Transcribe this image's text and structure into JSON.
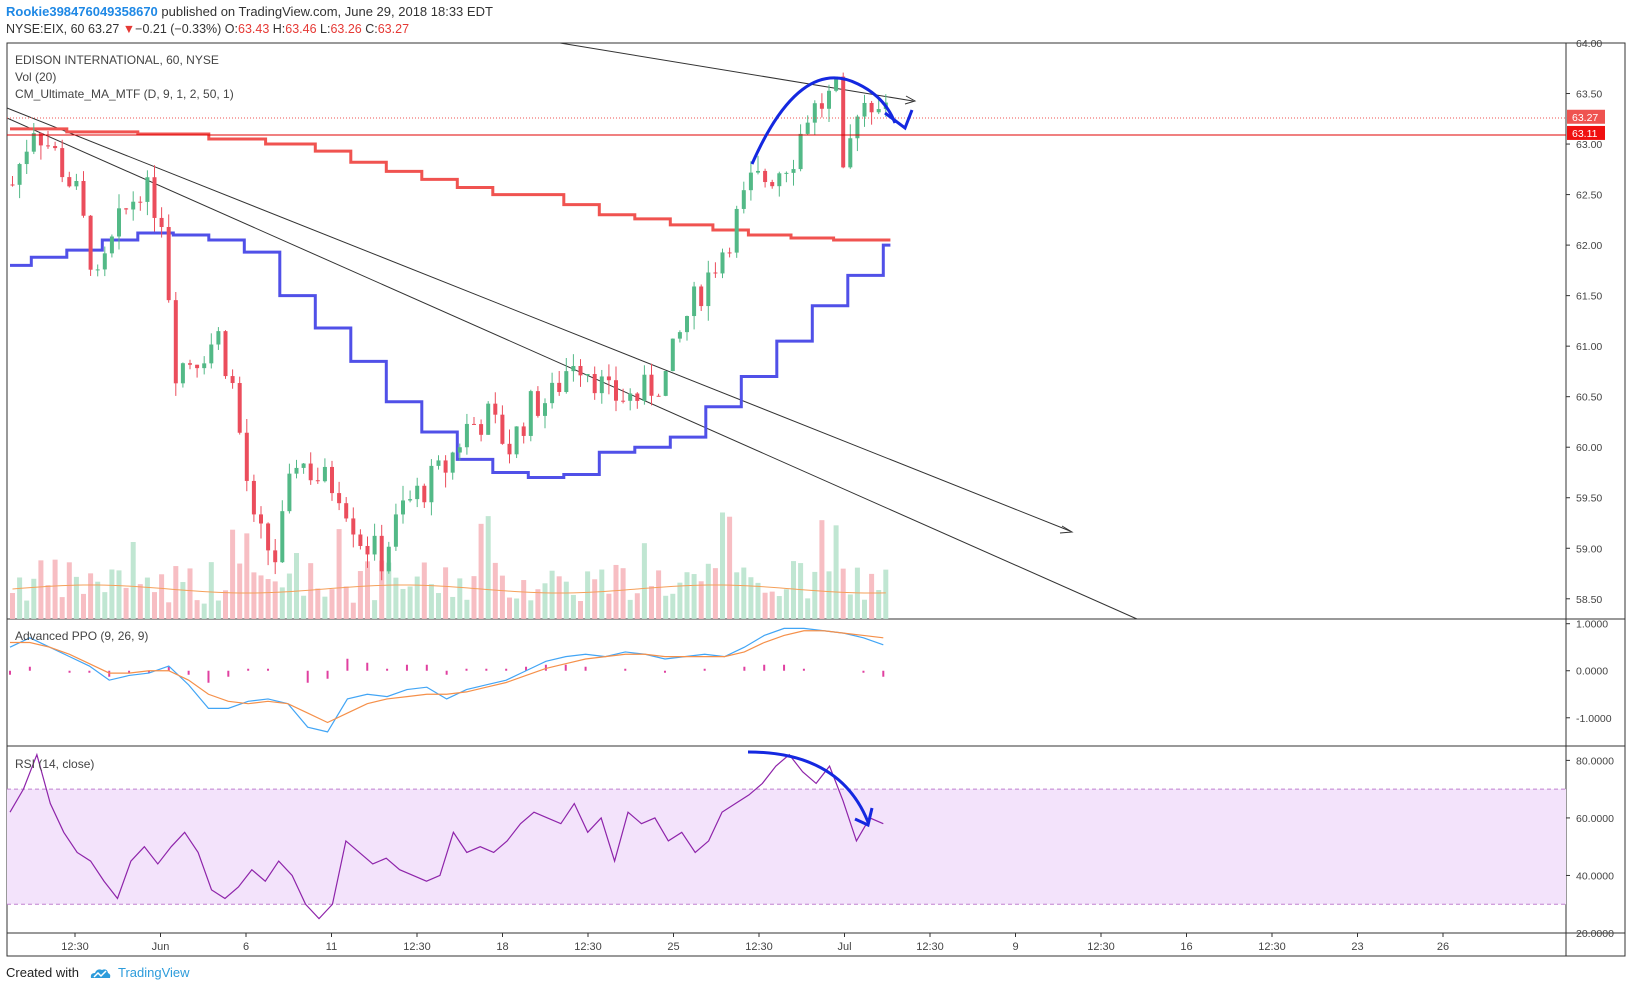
{
  "header": {
    "user": "Rookie398476049358670",
    "published": "published on TradingView.com, June 29, 2018 18:33 EDT",
    "symbol": "NYSE:EIX, 60",
    "last": "63.27",
    "change": "−0.21 (−0.33%)",
    "o_label": "O:",
    "o": "63.43",
    "h_label": "H:",
    "h": "63.46",
    "l_label": "L:",
    "l": "63.26",
    "c_label": "C:",
    "c": "63.27"
  },
  "footer": {
    "created": "Created with",
    "brand": "TradingView"
  },
  "chart_data": {
    "type": "candlestick",
    "title": "EDISON INTERNATIONAL, 60, NYSE",
    "studies": [
      "Vol (20)",
      "CM_Ultimate_MA_MTF (D, 9, 1, 2, 50, 1)"
    ],
    "price_axis": {
      "ticks": [
        "64.00",
        "63.50",
        "63.00",
        "62.50",
        "62.00",
        "61.50",
        "61.00",
        "60.50",
        "60.00",
        "59.50",
        "59.00",
        "58.50"
      ],
      "range": [
        58.3,
        64.0
      ]
    },
    "price_tags": [
      {
        "value": "63.27",
        "color": "#ef5350"
      },
      {
        "value": "63.11",
        "color": "#f01010"
      }
    ],
    "x_labels": [
      "12:30",
      "Jun",
      "6",
      "11",
      "12:30",
      "18",
      "12:30",
      "25",
      "12:30",
      "Jul",
      "12:30",
      "9",
      "12:30",
      "16",
      "12:30",
      "23",
      "26"
    ],
    "n_bars": 124,
    "colors": {
      "up": "#53b987",
      "down": "#eb4d5c",
      "ma_slow": "#f05350",
      "ma_fast": "#5050e8",
      "annotation": "#1428e0"
    },
    "ma_red": [
      {
        "from": 0,
        "to": 8,
        "v": 63.15
      },
      {
        "from": 8,
        "to": 18,
        "v": 63.12
      },
      {
        "from": 18,
        "to": 28,
        "v": 63.1
      },
      {
        "from": 28,
        "to": 36,
        "v": 63.05
      },
      {
        "from": 36,
        "to": 43,
        "v": 63.0
      },
      {
        "from": 43,
        "to": 48,
        "v": 62.93
      },
      {
        "from": 48,
        "to": 53,
        "v": 62.82
      },
      {
        "from": 53,
        "to": 58,
        "v": 62.73
      },
      {
        "from": 58,
        "to": 63,
        "v": 62.65
      },
      {
        "from": 63,
        "to": 68,
        "v": 62.57
      },
      {
        "from": 68,
        "to": 78,
        "v": 62.5
      },
      {
        "from": 78,
        "to": 83,
        "v": 62.4
      },
      {
        "from": 83,
        "to": 88,
        "v": 62.3
      },
      {
        "from": 88,
        "to": 93,
        "v": 62.26
      },
      {
        "from": 93,
        "to": 99,
        "v": 62.2
      },
      {
        "from": 99,
        "to": 104,
        "v": 62.15
      },
      {
        "from": 104,
        "to": 110,
        "v": 62.1
      },
      {
        "from": 110,
        "to": 116,
        "v": 62.07
      },
      {
        "from": 116,
        "to": 124,
        "v": 62.05
      }
    ],
    "ma_blue": [
      {
        "from": 0,
        "to": 3,
        "v": 61.8
      },
      {
        "from": 3,
        "to": 8,
        "v": 61.88
      },
      {
        "from": 8,
        "to": 13,
        "v": 61.95
      },
      {
        "from": 13,
        "to": 18,
        "v": 62.05
      },
      {
        "from": 18,
        "to": 23,
        "v": 62.12
      },
      {
        "from": 23,
        "to": 28,
        "v": 62.1
      },
      {
        "from": 28,
        "to": 33,
        "v": 62.05
      },
      {
        "from": 33,
        "to": 38,
        "v": 61.93
      },
      {
        "from": 38,
        "to": 43,
        "v": 61.5
      },
      {
        "from": 43,
        "to": 48,
        "v": 61.18
      },
      {
        "from": 48,
        "to": 53,
        "v": 60.85
      },
      {
        "from": 53,
        "to": 58,
        "v": 60.45
      },
      {
        "from": 58,
        "to": 63,
        "v": 60.15
      },
      {
        "from": 63,
        "to": 68,
        "v": 59.88
      },
      {
        "from": 68,
        "to": 73,
        "v": 59.75
      },
      {
        "from": 73,
        "to": 78,
        "v": 59.7
      },
      {
        "from": 78,
        "to": 83,
        "v": 59.73
      },
      {
        "from": 83,
        "to": 88,
        "v": 59.95
      },
      {
        "from": 88,
        "to": 93,
        "v": 60.0
      },
      {
        "from": 93,
        "to": 98,
        "v": 60.1
      },
      {
        "from": 98,
        "to": 103,
        "v": 60.4
      },
      {
        "from": 103,
        "to": 108,
        "v": 60.7
      },
      {
        "from": 108,
        "to": 113,
        "v": 61.05
      },
      {
        "from": 113,
        "to": 118,
        "v": 61.4
      },
      {
        "from": 118,
        "to": 123,
        "v": 61.7
      },
      {
        "from": 123,
        "to": 124,
        "v": 62.0
      }
    ],
    "ppo": {
      "label": "Advanced PPO (9, 26, 9)",
      "ticks": [
        "1.0000",
        "0.0000",
        "-1.0000"
      ],
      "range": [
        -1.6,
        1.1
      ],
      "line": [
        0.5,
        0.7,
        0.5,
        0.3,
        0.1,
        -0.2,
        -0.1,
        -0.05,
        0.1,
        -0.3,
        -0.8,
        -0.8,
        -0.65,
        -0.6,
        -0.7,
        -1.2,
        -1.3,
        -0.6,
        -0.5,
        -0.55,
        -0.4,
        -0.35,
        -0.6,
        -0.4,
        -0.3,
        -0.2,
        0.0,
        0.2,
        0.3,
        0.35,
        0.3,
        0.4,
        0.35,
        0.25,
        0.3,
        0.35,
        0.3,
        0.5,
        0.75,
        0.9,
        0.9,
        0.85,
        0.8,
        0.7,
        0.55
      ],
      "signal": [
        0.6,
        0.6,
        0.5,
        0.35,
        0.15,
        -0.05,
        -0.05,
        0.0,
        0.0,
        -0.2,
        -0.5,
        -0.65,
        -0.7,
        -0.65,
        -0.7,
        -0.9,
        -1.1,
        -0.9,
        -0.7,
        -0.6,
        -0.55,
        -0.5,
        -0.5,
        -0.45,
        -0.35,
        -0.25,
        -0.1,
        0.05,
        0.15,
        0.25,
        0.3,
        0.35,
        0.35,
        0.3,
        0.3,
        0.3,
        0.3,
        0.4,
        0.6,
        0.75,
        0.85,
        0.85,
        0.8,
        0.75,
        0.7
      ]
    },
    "rsi": {
      "label": "RSI (14, close)",
      "ticks": [
        "80.0000",
        "60.0000",
        "40.0000",
        "20.0000"
      ],
      "range": [
        20,
        85
      ],
      "band": [
        30,
        70
      ],
      "values": [
        62,
        70,
        82,
        65,
        55,
        48,
        45,
        38,
        32,
        45,
        50,
        44,
        50,
        55,
        48,
        35,
        32,
        36,
        42,
        38,
        45,
        40,
        30,
        25,
        30,
        52,
        48,
        44,
        46,
        42,
        40,
        38,
        40,
        55,
        48,
        50,
        48,
        52,
        58,
        62,
        60,
        58,
        65,
        55,
        60,
        45,
        62,
        58,
        60,
        52,
        55,
        48,
        52,
        62,
        65,
        68,
        72,
        78,
        82,
        76,
        72,
        78,
        66,
        52,
        60,
        58
      ]
    }
  }
}
